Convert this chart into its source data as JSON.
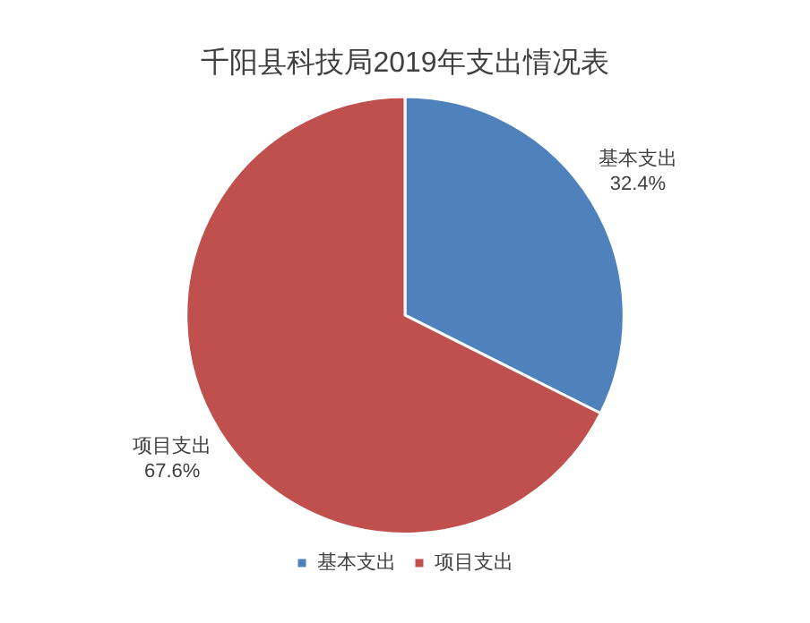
{
  "chart_data": {
    "type": "pie",
    "title": "千阳县科技局2019年支出情况表",
    "categories": [
      "基本支出",
      "项目支出"
    ],
    "values": [
      32.4,
      67.6
    ],
    "value_labels": [
      "32.4%",
      "67.6%"
    ],
    "colors": [
      "#4f81bd",
      "#c0504d"
    ],
    "legend": "bottom"
  }
}
